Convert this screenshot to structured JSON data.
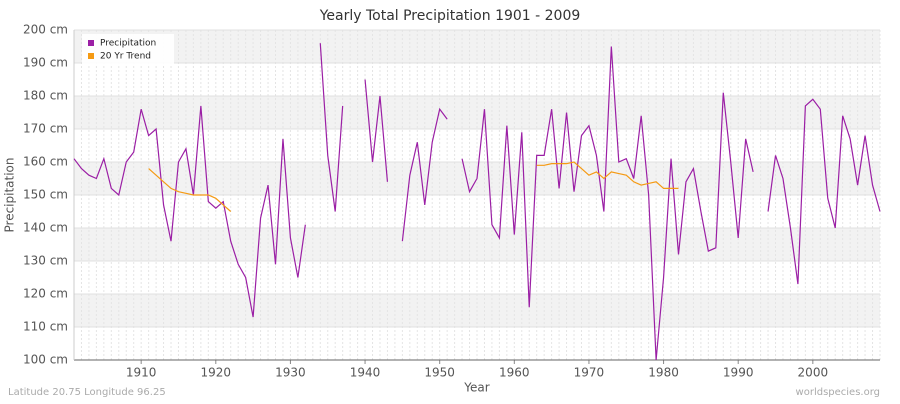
{
  "chart_data": {
    "type": "line",
    "title": "Yearly Total Precipitation 1901 - 2009",
    "x_label": "Year",
    "y_label": "Precipitation",
    "footer_left": "Latitude 20.75 Longitude 96.25",
    "footer_right": "worldspecies.org",
    "legend": "upper left",
    "grid": true,
    "xlim": [
      1901,
      2009
    ],
    "xticks": [
      1910,
      1920,
      1930,
      1940,
      1950,
      1960,
      1970,
      1980,
      1990,
      2000
    ],
    "ylim": [
      100,
      200
    ],
    "yticks": [
      {
        "value": 100,
        "label": "100 cm"
      },
      {
        "value": 110,
        "label": "110 cm"
      },
      {
        "value": 120,
        "label": "120 cm"
      },
      {
        "value": 130,
        "label": "130 cm"
      },
      {
        "value": 140,
        "label": "140 cm"
      },
      {
        "value": 150,
        "label": "150 cm"
      },
      {
        "value": 160,
        "label": "160 cm"
      },
      {
        "value": 170,
        "label": "170 cm"
      },
      {
        "value": 180,
        "label": "180 cm"
      },
      {
        "value": 190,
        "label": "190 cm"
      },
      {
        "value": 200,
        "label": "200 cm"
      }
    ],
    "x": [
      1901,
      1902,
      1903,
      1904,
      1905,
      1906,
      1907,
      1908,
      1909,
      1910,
      1911,
      1912,
      1913,
      1914,
      1915,
      1916,
      1917,
      1918,
      1919,
      1920,
      1921,
      1922,
      1923,
      1924,
      1925,
      1926,
      1927,
      1928,
      1929,
      1930,
      1931,
      1932,
      1933,
      1934,
      1935,
      1936,
      1937,
      1938,
      1939,
      1940,
      1941,
      1942,
      1943,
      1944,
      1945,
      1946,
      1947,
      1948,
      1949,
      1950,
      1951,
      1952,
      1953,
      1954,
      1955,
      1956,
      1957,
      1958,
      1959,
      1960,
      1961,
      1962,
      1963,
      1964,
      1965,
      1966,
      1967,
      1968,
      1969,
      1970,
      1971,
      1972,
      1973,
      1974,
      1975,
      1976,
      1977,
      1978,
      1979,
      1980,
      1981,
      1982,
      1983,
      1984,
      1985,
      1986,
      1987,
      1988,
      1989,
      1990,
      1991,
      1992,
      1993,
      1994,
      1995,
      1996,
      1997,
      1998,
      1999,
      2000,
      2001,
      2002,
      2003,
      2004,
      2005,
      2006,
      2007,
      2008,
      2009
    ],
    "series": [
      {
        "name": "Precipitation",
        "color": "#9b1fa5",
        "values": [
          161,
          158,
          156,
          155,
          161,
          152,
          150,
          160,
          163,
          176,
          168,
          170,
          147,
          136,
          160,
          164,
          150,
          177,
          148,
          146,
          148,
          136,
          129,
          125,
          113,
          143,
          153,
          129,
          167,
          137,
          125,
          141,
          null,
          196,
          162,
          145,
          177,
          null,
          null,
          185,
          160,
          180,
          154,
          null,
          136,
          156,
          166,
          147,
          166,
          176,
          173,
          null,
          161,
          151,
          155,
          176,
          141,
          137,
          171,
          138,
          169,
          116,
          162,
          162,
          176,
          152,
          175,
          151,
          168,
          171,
          162,
          145,
          195,
          160,
          161,
          155,
          174,
          150,
          100,
          125,
          161,
          132,
          154,
          158,
          145,
          133,
          134,
          181,
          160,
          137,
          167,
          157,
          null,
          145,
          162,
          155,
          140,
          123,
          177,
          179,
          176,
          149,
          140,
          174,
          167,
          153,
          168,
          153,
          145
        ]
      },
      {
        "name": "20 Yr Trend",
        "color": "#f59a13",
        "values": [
          null,
          null,
          null,
          null,
          null,
          null,
          null,
          null,
          null,
          null,
          158,
          156,
          154,
          152,
          151,
          150.5,
          150,
          150,
          150,
          149,
          147,
          145,
          null,
          null,
          null,
          null,
          null,
          null,
          null,
          null,
          null,
          null,
          null,
          null,
          null,
          null,
          null,
          null,
          null,
          null,
          null,
          null,
          null,
          null,
          null,
          null,
          null,
          null,
          null,
          null,
          null,
          null,
          null,
          null,
          null,
          null,
          null,
          null,
          null,
          null,
          null,
          null,
          159,
          159,
          159.5,
          159.5,
          159.5,
          160,
          158,
          156,
          157,
          155,
          157,
          156.5,
          156,
          154,
          153,
          153.5,
          154,
          152,
          152,
          152,
          null,
          null,
          null,
          null,
          null,
          null,
          null,
          null,
          null,
          null,
          null,
          null,
          null,
          null,
          null,
          null,
          null,
          null,
          null,
          null,
          null,
          null,
          null,
          null,
          null,
          null,
          null
        ]
      }
    ]
  }
}
